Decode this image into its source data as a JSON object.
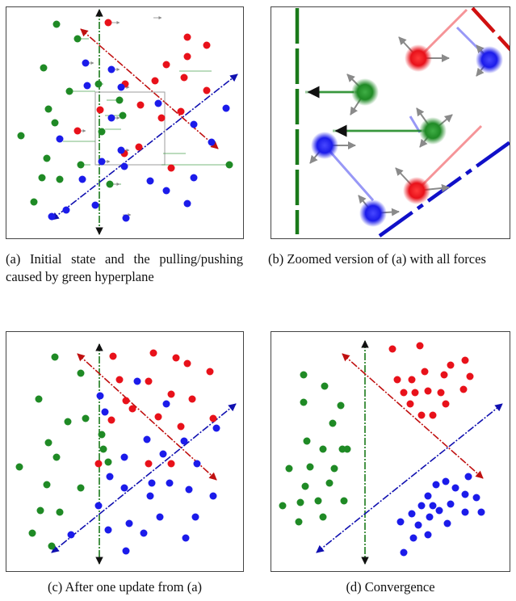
{
  "figure": {
    "captions": {
      "a": "(a) Initial state and the pulling/pushing caused by green hyperplane",
      "b": "(b) Zoomed version of (a) with all forces",
      "c": "(c) After one update from (a)",
      "d": "(d) Convergence"
    }
  },
  "colors": {
    "red": "#e8111a",
    "blue": "#1b1bea",
    "green": "#1f8a25",
    "red_line": "#c01010",
    "blue_line": "#1010b0",
    "green_line": "#1a7a1a",
    "arrow_gray": "#8a8a8a",
    "zoom_box": "#9e9e9e"
  },
  "panels": {
    "a": {
      "points": {
        "red": [
          [
            134,
            28
          ],
          [
            232,
            46
          ],
          [
            256,
            56
          ],
          [
            232,
            70
          ],
          [
            206,
            80
          ],
          [
            228,
            96
          ],
          [
            192,
            100
          ],
          [
            155,
            104
          ],
          [
            256,
            112
          ],
          [
            174,
            130
          ],
          [
            124,
            136
          ],
          [
            224,
            138
          ],
          [
            200,
            146
          ],
          [
            96,
            162
          ],
          [
            172,
            182
          ],
          [
            154,
            190
          ],
          [
            212,
            208
          ]
        ],
        "blue": [
          [
            106,
            78
          ],
          [
            138,
            86
          ],
          [
            108,
            106
          ],
          [
            150,
            108
          ],
          [
            196,
            128
          ],
          [
            280,
            134
          ],
          [
            138,
            146
          ],
          [
            240,
            154
          ],
          [
            74,
            172
          ],
          [
            262,
            176
          ],
          [
            150,
            186
          ],
          [
            126,
            200
          ],
          [
            154,
            206
          ],
          [
            240,
            220
          ],
          [
            102,
            222
          ],
          [
            186,
            224
          ],
          [
            206,
            236
          ],
          [
            232,
            252
          ],
          [
            118,
            254
          ],
          [
            82,
            260
          ],
          [
            156,
            270
          ],
          [
            64,
            268
          ]
        ]
      }
    },
    "c": {
      "points": {
        "red": [
          [
            140,
            441
          ],
          [
            190,
            437
          ],
          [
            218,
            443
          ],
          [
            232,
            450
          ],
          [
            260,
            460
          ],
          [
            148,
            470
          ],
          [
            184,
            472
          ],
          [
            212,
            488
          ],
          [
            238,
            494
          ],
          [
            156,
            496
          ],
          [
            164,
            506
          ],
          [
            196,
            516
          ],
          [
            264,
            518
          ],
          [
            138,
            520
          ],
          [
            224,
            528
          ],
          [
            122,
            574
          ],
          [
            184,
            574
          ],
          [
            212,
            574
          ]
        ],
        "blue": [
          [
            170,
            472
          ],
          [
            124,
            490
          ],
          [
            206,
            500
          ],
          [
            130,
            510
          ],
          [
            268,
            530
          ],
          [
            182,
            544
          ],
          [
            228,
            546
          ],
          [
            202,
            562
          ],
          [
            154,
            566
          ],
          [
            244,
            574
          ],
          [
            136,
            590
          ],
          [
            154,
            604
          ],
          [
            210,
            598
          ],
          [
            188,
            598
          ],
          [
            186,
            614
          ],
          [
            234,
            606
          ],
          [
            264,
            614
          ],
          [
            122,
            626
          ],
          [
            198,
            640
          ],
          [
            242,
            640
          ],
          [
            160,
            648
          ],
          [
            134,
            656
          ],
          [
            178,
            660
          ],
          [
            230,
            666
          ],
          [
            88,
            662
          ],
          [
            156,
            682
          ]
        ]
      }
    },
    "d": {
      "points": {
        "red": [
          [
            486,
            432
          ],
          [
            520,
            428
          ],
          [
            492,
            470
          ],
          [
            510,
            470
          ],
          [
            526,
            460
          ],
          [
            550,
            464
          ],
          [
            576,
            446
          ],
          [
            558,
            452
          ],
          [
            582,
            466
          ],
          [
            500,
            486
          ],
          [
            514,
            486
          ],
          [
            530,
            484
          ],
          [
            546,
            486
          ],
          [
            574,
            482
          ],
          [
            508,
            500
          ],
          [
            522,
            514
          ],
          [
            536,
            514
          ],
          [
            552,
            500
          ]
        ],
        "blue": [
          [
            580,
            590
          ],
          [
            552,
            596
          ],
          [
            564,
            604
          ],
          [
            540,
            600
          ],
          [
            530,
            614
          ],
          [
            576,
            612
          ],
          [
            590,
            616
          ],
          [
            522,
            626
          ],
          [
            536,
            626
          ],
          [
            558,
            624
          ],
          [
            544,
            632
          ],
          [
            596,
            634
          ],
          [
            576,
            634
          ],
          [
            510,
            636
          ],
          [
            532,
            640
          ],
          [
            496,
            646
          ],
          [
            518,
            650
          ],
          [
            554,
            648
          ],
          [
            530,
            662
          ],
          [
            512,
            666
          ],
          [
            500,
            684
          ]
        ],
        "green": [
          [
            376,
            464
          ],
          [
            402,
            478
          ],
          [
            376,
            498
          ],
          [
            422,
            502
          ],
          [
            412,
            524
          ],
          [
            380,
            546
          ],
          [
            424,
            556
          ],
          [
            400,
            556
          ],
          [
            430,
            556
          ],
          [
            358,
            580
          ],
          [
            384,
            578
          ],
          [
            414,
            580
          ],
          [
            408,
            598
          ],
          [
            378,
            602
          ],
          [
            350,
            626
          ],
          [
            372,
            622
          ],
          [
            394,
            620
          ],
          [
            426,
            620
          ],
          [
            400,
            640
          ],
          [
            370,
            646
          ]
        ]
      }
    }
  }
}
